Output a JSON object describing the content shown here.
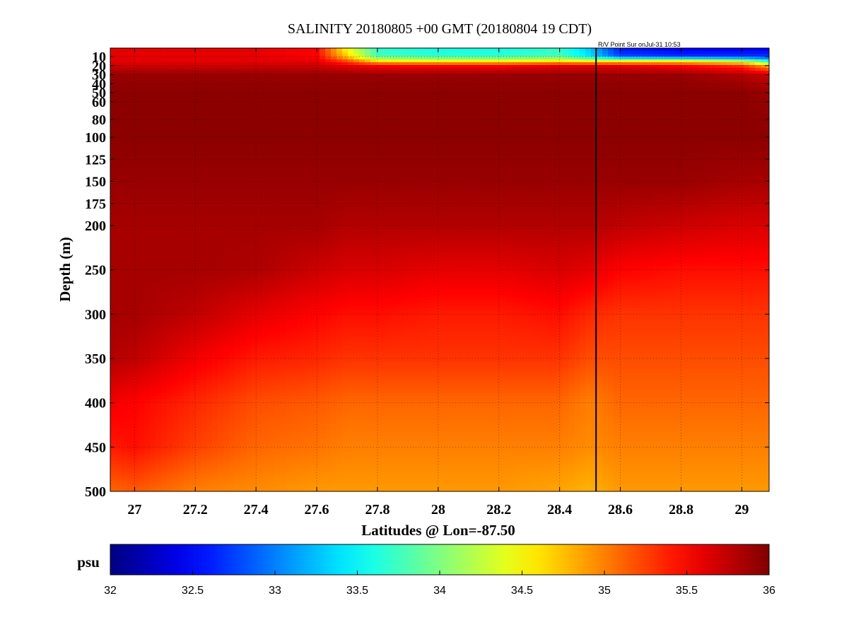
{
  "chart_data": {
    "type": "heatmap",
    "title": "SALINITY 20180805 +00 GMT (20180804 19 CDT)",
    "subtitle": "R/V Point Sur onJul-31 10:53",
    "xlabel": "Latitudes @ Lon=-87.50",
    "ylabel": "Depth (m)",
    "xlim": [
      26.92,
      29.09
    ],
    "ylim": [
      5,
      500
    ],
    "y_reversed": true,
    "y_scale": "nonlinear",
    "x_ticks": [
      27,
      27.2,
      27.4,
      27.6,
      27.8,
      28,
      28.2,
      28.4,
      28.6,
      28.8,
      29
    ],
    "x_tick_labels": [
      "27",
      "27.2",
      "27.4",
      "27.6",
      "27.8",
      "28",
      "28.2",
      "28.4",
      "28.6",
      "28.8",
      "29"
    ],
    "y_ticks": [
      10,
      20,
      30,
      40,
      50,
      60,
      80,
      100,
      125,
      150,
      175,
      200,
      250,
      300,
      350,
      400,
      450,
      500
    ],
    "y_tick_labels": [
      "10",
      "20",
      "30",
      "40",
      "50",
      "60",
      "80",
      "100",
      "125",
      "150",
      "175",
      "200",
      "250",
      "300",
      "350",
      "400",
      "450",
      "500"
    ],
    "grid": true,
    "colormap": "jet",
    "color_range": [
      32,
      36
    ],
    "colorbar": {
      "label": "psu",
      "ticks": [
        32,
        32.5,
        33,
        33.5,
        34,
        34.5,
        35,
        35.5,
        36
      ],
      "tick_labels": [
        "32",
        "32.5",
        "33",
        "33.5",
        "34",
        "34.5",
        "35",
        "35.5",
        "36"
      ],
      "placement": "bottom"
    },
    "vertical_line_lat": 28.52,
    "grid_lat": [
      26.92,
      27.0,
      27.2,
      27.4,
      27.6,
      27.7,
      27.8,
      28.0,
      28.2,
      28.4,
      28.5,
      28.6,
      28.8,
      29.0,
      29.09
    ],
    "grid_depth": [
      5,
      10,
      15,
      20,
      30,
      50,
      100,
      150,
      200,
      250,
      300,
      350,
      400,
      450,
      500
    ],
    "values": [
      [
        35.6,
        35.6,
        35.6,
        35.6,
        35.5,
        34.5,
        33.7,
        33.6,
        33.6,
        33.7,
        33.3,
        32.6,
        32.5,
        32.5,
        32.5
      ],
      [
        35.6,
        35.6,
        35.6,
        35.6,
        35.5,
        34.7,
        33.8,
        33.7,
        33.7,
        33.8,
        33.4,
        32.8,
        32.7,
        32.7,
        32.7
      ],
      [
        35.6,
        35.6,
        35.6,
        35.6,
        35.6,
        35.2,
        34.6,
        34.5,
        34.5,
        34.6,
        34.5,
        34.5,
        34.5,
        34.2,
        33.6
      ],
      [
        35.7,
        35.7,
        35.7,
        35.7,
        35.7,
        35.6,
        35.5,
        35.5,
        35.5,
        35.6,
        35.6,
        35.6,
        35.5,
        35.3,
        34.8
      ],
      [
        35.9,
        35.9,
        35.9,
        35.9,
        35.9,
        35.9,
        35.9,
        35.9,
        35.9,
        35.9,
        35.9,
        35.9,
        35.9,
        35.8,
        35.7
      ],
      [
        35.95,
        35.95,
        35.95,
        35.95,
        35.95,
        35.95,
        35.95,
        35.95,
        35.95,
        35.95,
        35.95,
        35.95,
        35.95,
        35.95,
        35.9
      ],
      [
        35.95,
        35.95,
        35.95,
        35.95,
        35.95,
        35.95,
        35.95,
        35.95,
        35.95,
        35.95,
        35.95,
        35.95,
        35.95,
        35.95,
        35.95
      ],
      [
        35.9,
        35.9,
        35.9,
        35.9,
        35.9,
        35.9,
        35.9,
        35.9,
        35.9,
        35.9,
        35.9,
        35.9,
        35.9,
        35.85,
        35.85
      ],
      [
        35.85,
        35.85,
        35.85,
        35.85,
        35.85,
        35.8,
        35.8,
        35.8,
        35.8,
        35.8,
        35.8,
        35.75,
        35.7,
        35.65,
        35.65
      ],
      [
        35.85,
        35.85,
        35.85,
        35.82,
        35.7,
        35.65,
        35.65,
        35.6,
        35.6,
        35.65,
        35.6,
        35.5,
        35.45,
        35.45,
        35.45
      ],
      [
        35.85,
        35.85,
        35.75,
        35.6,
        35.5,
        35.45,
        35.45,
        35.4,
        35.4,
        35.45,
        35.35,
        35.3,
        35.3,
        35.3,
        35.3
      ],
      [
        35.8,
        35.75,
        35.55,
        35.4,
        35.35,
        35.3,
        35.3,
        35.3,
        35.3,
        35.3,
        35.2,
        35.2,
        35.2,
        35.2,
        35.2
      ],
      [
        35.55,
        35.5,
        35.35,
        35.2,
        35.15,
        35.1,
        35.1,
        35.1,
        35.1,
        35.1,
        35.0,
        35.1,
        35.1,
        35.1,
        35.1
      ],
      [
        35.4,
        35.45,
        35.25,
        35.1,
        35.05,
        35.0,
        35.0,
        35.0,
        35.0,
        35.0,
        34.95,
        35.0,
        35.0,
        35.0,
        35.0
      ],
      [
        35.1,
        35.15,
        35.0,
        34.95,
        34.9,
        34.9,
        34.9,
        34.9,
        34.9,
        34.85,
        34.8,
        34.9,
        34.9,
        34.9,
        34.9
      ]
    ]
  }
}
